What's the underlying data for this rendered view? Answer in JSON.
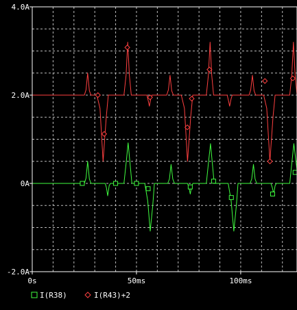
{
  "chart_data": {
    "type": "line",
    "title": "",
    "xlabel": "",
    "ylabel": "",
    "xlim": [
      0,
      127
    ],
    "ylim": [
      -2.0,
      4.0
    ],
    "grid": true,
    "legend_position": "bottom-left",
    "x_tick_values": [
      0,
      50,
      100
    ],
    "x_tick_labels": [
      "0s",
      "50ms",
      "100ms"
    ],
    "y_tick_values": [
      4.0,
      2.0,
      0,
      -2.0
    ],
    "y_tick_labels": [
      "4.0A",
      "2.0A",
      "0A",
      "-2.0A"
    ],
    "series": [
      {
        "name": "I(R38)",
        "color": "#40ff40",
        "marker": "square",
        "points": [
          [
            0,
            0
          ],
          [
            25,
            0
          ],
          [
            25.8,
            0.12
          ],
          [
            26.6,
            0.5
          ],
          [
            27.4,
            0.1
          ],
          [
            28.2,
            0
          ],
          [
            35,
            0
          ],
          [
            35.6,
            -0.1
          ],
          [
            36.2,
            -0.28
          ],
          [
            36.9,
            -0.05
          ],
          [
            37.5,
            0
          ],
          [
            44,
            0
          ],
          [
            45,
            0.45
          ],
          [
            46,
            0.92
          ],
          [
            47,
            0.4
          ],
          [
            47.8,
            0
          ],
          [
            54,
            0
          ],
          [
            55.4,
            -0.4
          ],
          [
            56.6,
            -1.08
          ],
          [
            57.8,
            -0.5
          ],
          [
            58.6,
            0
          ],
          [
            65,
            0
          ],
          [
            65.8,
            0.1
          ],
          [
            66.6,
            0.43
          ],
          [
            67.4,
            0.1
          ],
          [
            68.2,
            0
          ],
          [
            74.5,
            0
          ],
          [
            75.2,
            -0.1
          ],
          [
            75.8,
            -0.24
          ],
          [
            76.5,
            -0.05
          ],
          [
            77.1,
            0
          ],
          [
            83.5,
            0
          ],
          [
            84.5,
            0.45
          ],
          [
            85.5,
            0.9
          ],
          [
            86.5,
            0.4
          ],
          [
            87.3,
            0
          ],
          [
            94,
            0
          ],
          [
            95.4,
            -0.4
          ],
          [
            96.7,
            -1.08
          ],
          [
            97.9,
            -0.5
          ],
          [
            98.7,
            0
          ],
          [
            104.5,
            0
          ],
          [
            105.3,
            0.1
          ],
          [
            106.1,
            0.43
          ],
          [
            106.9,
            0.1
          ],
          [
            107.7,
            0
          ],
          [
            114.5,
            0
          ],
          [
            115.2,
            -0.1
          ],
          [
            115.8,
            -0.24
          ],
          [
            116.5,
            -0.05
          ],
          [
            117.1,
            0
          ],
          [
            123.5,
            0
          ],
          [
            124.5,
            0.45
          ],
          [
            125.5,
            0.9
          ],
          [
            126.5,
            0.5
          ],
          [
            127,
            0.3
          ]
        ],
        "marker_points": [
          [
            24,
            0
          ],
          [
            40,
            0
          ],
          [
            50,
            0
          ],
          [
            55.6,
            -0.12
          ],
          [
            75.8,
            -0.08
          ],
          [
            87,
            0.05
          ],
          [
            95.5,
            -0.32
          ],
          [
            115.3,
            -0.24
          ],
          [
            126.1,
            0.25
          ]
        ]
      },
      {
        "name": "I(R43)+2",
        "color": "#ff4040",
        "marker": "diamond",
        "points": [
          [
            0,
            2
          ],
          [
            25,
            2
          ],
          [
            25.8,
            2.12
          ],
          [
            26.6,
            2.5
          ],
          [
            27.4,
            2.1
          ],
          [
            28.2,
            2
          ],
          [
            31,
            2
          ],
          [
            32.5,
            1.7
          ],
          [
            34,
            0.5
          ],
          [
            35.5,
            1.5
          ],
          [
            36.5,
            2
          ],
          [
            44,
            2
          ],
          [
            45,
            2.45
          ],
          [
            45.8,
            3.2
          ],
          [
            46.6,
            2.45
          ],
          [
            47.5,
            2
          ],
          [
            55,
            2
          ],
          [
            55.6,
            1.88
          ],
          [
            56.2,
            1.75
          ],
          [
            56.8,
            1.9
          ],
          [
            57.4,
            2
          ],
          [
            64.5,
            2
          ],
          [
            65.3,
            2.12
          ],
          [
            66.1,
            2.45
          ],
          [
            66.9,
            2.1
          ],
          [
            67.7,
            2
          ],
          [
            71.5,
            2
          ],
          [
            73,
            1.7
          ],
          [
            74.5,
            0.5
          ],
          [
            76,
            1.5
          ],
          [
            77,
            2
          ],
          [
            83.5,
            2
          ],
          [
            84.5,
            2.45
          ],
          [
            85.3,
            3.2
          ],
          [
            86.1,
            2.45
          ],
          [
            87,
            2
          ],
          [
            93.5,
            2
          ],
          [
            94.1,
            1.88
          ],
          [
            94.7,
            1.75
          ],
          [
            95.3,
            1.9
          ],
          [
            95.9,
            2
          ],
          [
            104,
            2
          ],
          [
            104.8,
            2.12
          ],
          [
            105.6,
            2.45
          ],
          [
            106.4,
            2.1
          ],
          [
            107.2,
            2
          ],
          [
            111,
            2
          ],
          [
            112.5,
            1.7
          ],
          [
            114,
            0.5
          ],
          [
            115.5,
            1.5
          ],
          [
            116.5,
            2
          ],
          [
            123.5,
            2
          ],
          [
            124.5,
            2.45
          ],
          [
            125.3,
            3.2
          ],
          [
            126.1,
            2.45
          ],
          [
            127,
            2
          ]
        ],
        "marker_points": [
          [
            31.5,
            2
          ],
          [
            34.5,
            1.12
          ],
          [
            45.6,
            3.08
          ],
          [
            56.5,
            1.95
          ],
          [
            74.4,
            1.27
          ],
          [
            76.5,
            1.92
          ],
          [
            85,
            2.58
          ],
          [
            111.6,
            2.32
          ],
          [
            114,
            0.5
          ],
          [
            125,
            2.38
          ]
        ]
      }
    ]
  }
}
